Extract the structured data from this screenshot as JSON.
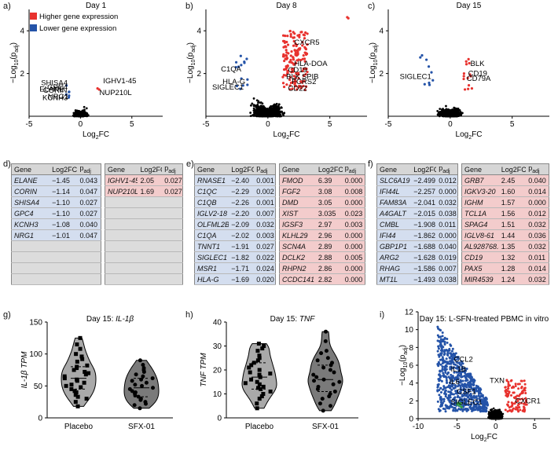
{
  "panel_letters": [
    "a)",
    "b)",
    "c)",
    "d)",
    "e)",
    "f)",
    "g)",
    "h)",
    "i)"
  ],
  "legend": {
    "higher": "Higher gene expression",
    "lower": "Lower gene expression",
    "higher_color": "#e8322e",
    "lower_color": "#2453a8"
  },
  "colors": {
    "up": "#e8322e",
    "down": "#2453a8",
    "ns": "#000000",
    "green": "#3aa345"
  },
  "volcano_axis": {
    "xlabel": "Log2FC",
    "ylabel": "-Log10(padj)"
  },
  "chart_data": [
    {
      "type": "scatter",
      "id": "a",
      "title": "Day 1",
      "xlim": [
        -5,
        8
      ],
      "ylim": [
        0,
        5
      ],
      "xticks": [
        -5,
        0,
        5
      ],
      "yticks": [
        2,
        4
      ],
      "labels": [
        {
          "text": "SHISA4",
          "x": -1.1,
          "y": 1.45
        },
        {
          "text": "GPC4",
          "x": -1.1,
          "y": 1.25
        },
        {
          "text": "ELANE",
          "x": -1.45,
          "y": 1.15
        },
        {
          "text": "CORIN",
          "x": -1.14,
          "y": 1.1
        },
        {
          "text": "IGHV1-45",
          "x": 2.05,
          "y": 1.55
        },
        {
          "text": "NUP210L",
          "x": 1.69,
          "y": 1.0
        },
        {
          "text": "NRG1",
          "x": -1.01,
          "y": 0.8
        },
        {
          "text": "KCNH3",
          "x": -1.08,
          "y": 0.75
        }
      ]
    },
    {
      "type": "scatter",
      "id": "b",
      "title": "Day 8",
      "xlim": [
        -5,
        8
      ],
      "ylim": [
        0,
        5
      ],
      "xticks": [
        -5,
        0,
        5
      ],
      "yticks": [
        2,
        4
      ],
      "labels": [
        {
          "text": "CXCR5",
          "x": 2.0,
          "y": 3.35
        },
        {
          "text": "C1QA",
          "x": -2.02,
          "y": 2.1
        },
        {
          "text": "HLA-DOA",
          "x": 2.0,
          "y": 2.35
        },
        {
          "text": "CD19",
          "x": 1.5,
          "y": 2.05
        },
        {
          "text": "BLK",
          "x": 1.35,
          "y": 1.75
        },
        {
          "text": "SPIB",
          "x": 2.6,
          "y": 1.75
        },
        {
          "text": "HLA-G",
          "x": -1.69,
          "y": 1.5
        },
        {
          "text": "FCRS2",
          "x": 1.8,
          "y": 1.5
        },
        {
          "text": "CD22",
          "x": 1.5,
          "y": 1.2
        },
        {
          "text": "SIGLEC1",
          "x": -1.82,
          "y": 1.25
        }
      ]
    },
    {
      "type": "scatter",
      "id": "c",
      "title": "Day 15",
      "xlim": [
        -5,
        8
      ],
      "ylim": [
        0,
        5
      ],
      "xticks": [
        -5,
        0,
        5
      ],
      "yticks": [
        2,
        4
      ],
      "labels": [
        {
          "text": "BLK",
          "x": 1.5,
          "y": 2.35
        },
        {
          "text": "CD19",
          "x": 1.32,
          "y": 1.9
        },
        {
          "text": "SIGLEC1",
          "x": -1.4,
          "y": 1.75
        },
        {
          "text": "CD79A",
          "x": 1.2,
          "y": 1.65
        }
      ]
    },
    {
      "type": "violin",
      "id": "g",
      "title": "Day 15: IL-1β",
      "ylabel": "IL-1β TPM",
      "categories": [
        "Placebo",
        "SFX-01"
      ],
      "ylim": [
        0,
        150
      ],
      "yticks": [
        0,
        50,
        100,
        150
      ],
      "series": [
        {
          "name": "Placebo",
          "color": "#a9a9a9",
          "values": [
            18,
            25,
            30,
            33,
            36,
            40,
            42,
            45,
            48,
            50,
            52,
            55,
            58,
            60,
            62,
            65,
            68,
            70,
            72,
            75,
            78,
            80,
            82,
            88,
            92,
            96,
            100,
            108,
            115,
            125
          ]
        },
        {
          "name": "SFX-01",
          "color": "#7a7a7a",
          "values": [
            15,
            20,
            22,
            25,
            28,
            30,
            33,
            35,
            38,
            40,
            42,
            45,
            47,
            50,
            52,
            55,
            58,
            60,
            62,
            65,
            68,
            72,
            75,
            78,
            83,
            90
          ]
        }
      ]
    },
    {
      "type": "violin",
      "id": "h",
      "title": "Day 15: TNF",
      "ylabel": "TNF TPM",
      "categories": [
        "Placebo",
        "SFX-01"
      ],
      "ylim": [
        0,
        40
      ],
      "yticks": [
        0,
        10,
        20,
        30,
        40
      ],
      "series": [
        {
          "name": "Placebo",
          "color": "#a9a9a9",
          "values": [
            4,
            6,
            8,
            9,
            10,
            11,
            12,
            12.5,
            13,
            14,
            14.5,
            15,
            16,
            17,
            18,
            18.5,
            19,
            20,
            21,
            22,
            23,
            24,
            25,
            26,
            28,
            29,
            30,
            31
          ]
        },
        {
          "name": "SFX-01",
          "color": "#7a7a7a",
          "values": [
            3,
            5,
            6,
            8,
            9,
            10,
            11,
            12,
            13,
            14,
            15,
            15.5,
            16,
            17,
            18,
            19,
            20,
            21,
            22,
            23,
            24,
            25,
            27,
            28,
            32,
            36
          ]
        }
      ]
    },
    {
      "type": "scatter",
      "id": "i",
      "title": "Day 15: L-SFN-treated PBMC in vitro",
      "xlim": [
        -10,
        7
      ],
      "ylim": [
        0,
        12
      ],
      "xticks": [
        -10,
        -5,
        0,
        5
      ],
      "yticks": [
        0,
        2,
        4,
        6,
        8,
        10,
        12
      ],
      "labels": [
        {
          "text": "CCL2",
          "x": -5.6,
          "y": 6.4
        },
        {
          "text": "IL1B",
          "x": -6.0,
          "y": 5.3
        },
        {
          "text": "IL6",
          "x": -6.2,
          "y": 3.9
        },
        {
          "text": "TXN",
          "x": -1.0,
          "y": 4.0
        },
        {
          "text": "CSF1",
          "x": -5.2,
          "y": 2.8
        },
        {
          "text": "SIGLEC1",
          "x": -6.0,
          "y": 1.6
        },
        {
          "text": "CXCR1",
          "x": 2.3,
          "y": 1.7
        }
      ]
    }
  ],
  "tables": {
    "header": {
      "gene": "Gene",
      "fc": "Log2FC",
      "padj": "padj"
    },
    "d_low": [
      [
        "ELANE",
        "−1.45",
        "0.043"
      ],
      [
        "CORIN",
        "−1.14",
        "0.047"
      ],
      [
        "SHISA4",
        "−1.10",
        "0.027"
      ],
      [
        "GPC4",
        "−1.10",
        "0.027"
      ],
      [
        "KCNH3",
        "−1.08",
        "0.040"
      ],
      [
        "NRG1",
        "−1.01",
        "0.047"
      ]
    ],
    "d_high": [
      [
        "IGHV1-45",
        "2.05",
        "0.027"
      ],
      [
        "NUP210L",
        "1.69",
        "0.027"
      ]
    ],
    "e_low": [
      [
        "RNASE1",
        "−2.40",
        "0.001"
      ],
      [
        "C1QC",
        "−2.29",
        "0.002"
      ],
      [
        "C1QB",
        "−2.26",
        "0.001"
      ],
      [
        "IGLV2-18",
        "−2.20",
        "0.007"
      ],
      [
        "OLFML2B",
        "−2.09",
        "0.032"
      ],
      [
        "C1QA",
        "−2.02",
        "0.003"
      ],
      [
        "TNNT1",
        "−1.91",
        "0.027"
      ],
      [
        "SIGLEC1",
        "−1.82",
        "0.022"
      ],
      [
        "MSR1",
        "−1.71",
        "0.024"
      ],
      [
        "HLA-G",
        "−1.69",
        "0.020"
      ]
    ],
    "e_high": [
      [
        "FMOD",
        "6.39",
        "0.000"
      ],
      [
        "FGF2",
        "3.08",
        "0.008"
      ],
      [
        "DMD",
        "3.05",
        "0.000"
      ],
      [
        "XIST",
        "3.035",
        "0.023"
      ],
      [
        "IGSF3",
        "2.97",
        "0.003"
      ],
      [
        "KLHL29",
        "2.96",
        "0.000"
      ],
      [
        "SCN4A",
        "2.89",
        "0.000"
      ],
      [
        "DCLK2",
        "2.88",
        "0.005"
      ],
      [
        "RHPN2",
        "2.86",
        "0.000"
      ],
      [
        "CCDC141",
        "2.82",
        "0.000"
      ]
    ],
    "f_low": [
      [
        "SLC6A19",
        "−2.499",
        "0.012"
      ],
      [
        "IFI44L",
        "−2.257",
        "0.000"
      ],
      [
        "FAM83A",
        "−2.041",
        "0.032"
      ],
      [
        "A4GALT",
        "−2.015",
        "0.038"
      ],
      [
        "CMBL",
        "−1.908",
        "0.011"
      ],
      [
        "IFI44",
        "−1.862",
        "0.000"
      ],
      [
        "GBP1P1",
        "−1.688",
        "0.040"
      ],
      [
        "ARG2",
        "−1.628",
        "0.019"
      ],
      [
        "RHAG",
        "−1.586",
        "0.007"
      ],
      [
        "MT1L",
        "−1.493",
        "0.038"
      ]
    ],
    "f_high": [
      [
        "GRB7",
        "2.45",
        "0.040"
      ],
      [
        "IGKV3-20",
        "1.60",
        "0.014"
      ],
      [
        "IGHM",
        "1.57",
        "0.000"
      ],
      [
        "TCL1A",
        "1.56",
        "0.012"
      ],
      [
        "SPAG4",
        "1.51",
        "0.032"
      ],
      [
        "IGLV8-61",
        "1.44",
        "0.036"
      ],
      [
        "AL928768.3",
        "1.35",
        "0.032"
      ],
      [
        "CD19",
        "1.32",
        "0.011"
      ],
      [
        "PAX5",
        "1.28",
        "0.014"
      ],
      [
        "MIR4539",
        "1.24",
        "0.032"
      ]
    ]
  }
}
